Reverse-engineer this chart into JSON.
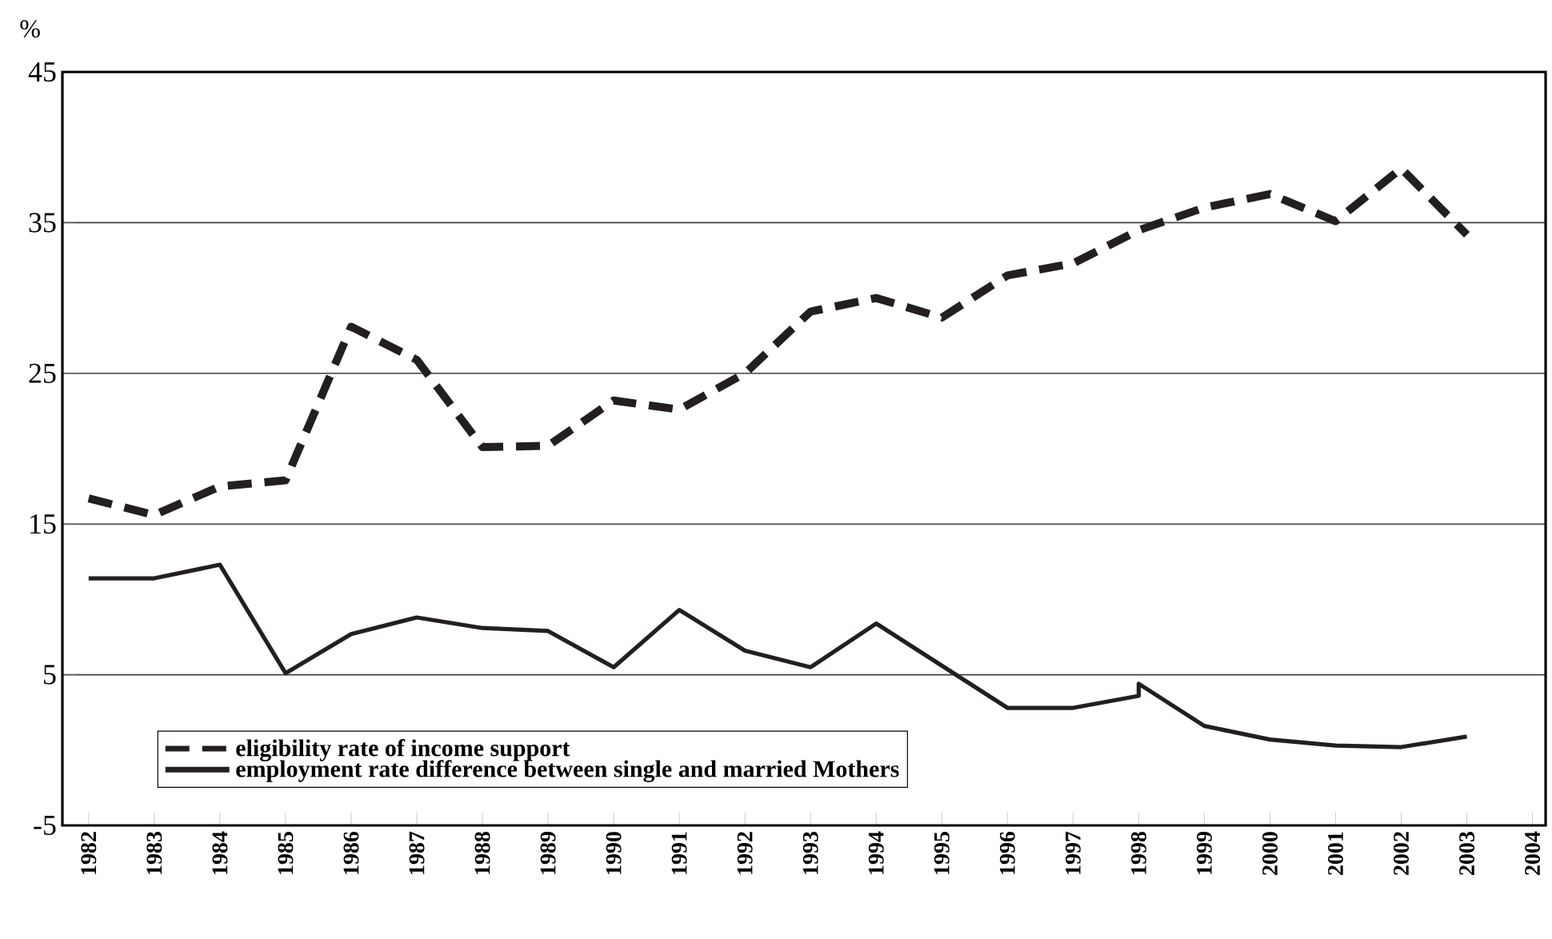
{
  "chart_data": {
    "type": "line",
    "ylabel": "%",
    "x": [
      1982,
      1983,
      1984,
      1985,
      1986,
      1987,
      1988,
      1989,
      1990,
      1991,
      1992,
      1993,
      1994,
      1995,
      1996,
      1997,
      1998,
      1999,
      2000,
      2001,
      2002,
      2003
    ],
    "series": [
      {
        "name": "eligibility rate of income support",
        "color": "#231f20",
        "line_style": "dashed",
        "values": [
          16.7,
          15.6,
          17.5,
          17.9,
          28.1,
          25.9,
          20.1,
          20.2,
          23.2,
          22.6,
          25.0,
          29.1,
          30.0,
          28.7,
          31.5,
          32.3,
          34.5,
          36.0,
          36.9,
          35.1,
          38.6,
          34.2
        ]
      },
      {
        "name": "employment rate difference between single and married Mothers",
        "color": "#231f20",
        "line_style": "solid",
        "x": [
          1982,
          1983,
          1984,
          1985,
          1986,
          1987,
          1988,
          1989,
          1990,
          1991,
          1992,
          1993,
          1994,
          1995,
          1996,
          1997,
          1998,
          1998,
          1999,
          2000,
          2001,
          2002,
          2003
        ],
        "values": [
          11.4,
          11.4,
          12.3,
          5.1,
          7.7,
          8.8,
          8.1,
          7.9,
          5.5,
          9.3,
          6.6,
          5.5,
          8.4,
          5.6,
          2.8,
          2.8,
          3.6,
          4.4,
          1.6,
          0.7,
          0.3,
          0.2,
          0.9
        ]
      }
    ],
    "xlim": [
      1981.6,
      2004.2
    ],
    "xticks": [
      1982,
      1983,
      1984,
      1985,
      1986,
      1987,
      1988,
      1989,
      1990,
      1991,
      1992,
      1993,
      1994,
      1995,
      1996,
      1997,
      1998,
      1999,
      2000,
      2001,
      2002,
      2003,
      2004
    ],
    "ylim": [
      -5,
      45
    ],
    "yticks": [
      -5,
      5,
      15,
      25,
      35,
      45
    ],
    "grid": "y",
    "legend": "bottom left",
    "marker": "none"
  }
}
